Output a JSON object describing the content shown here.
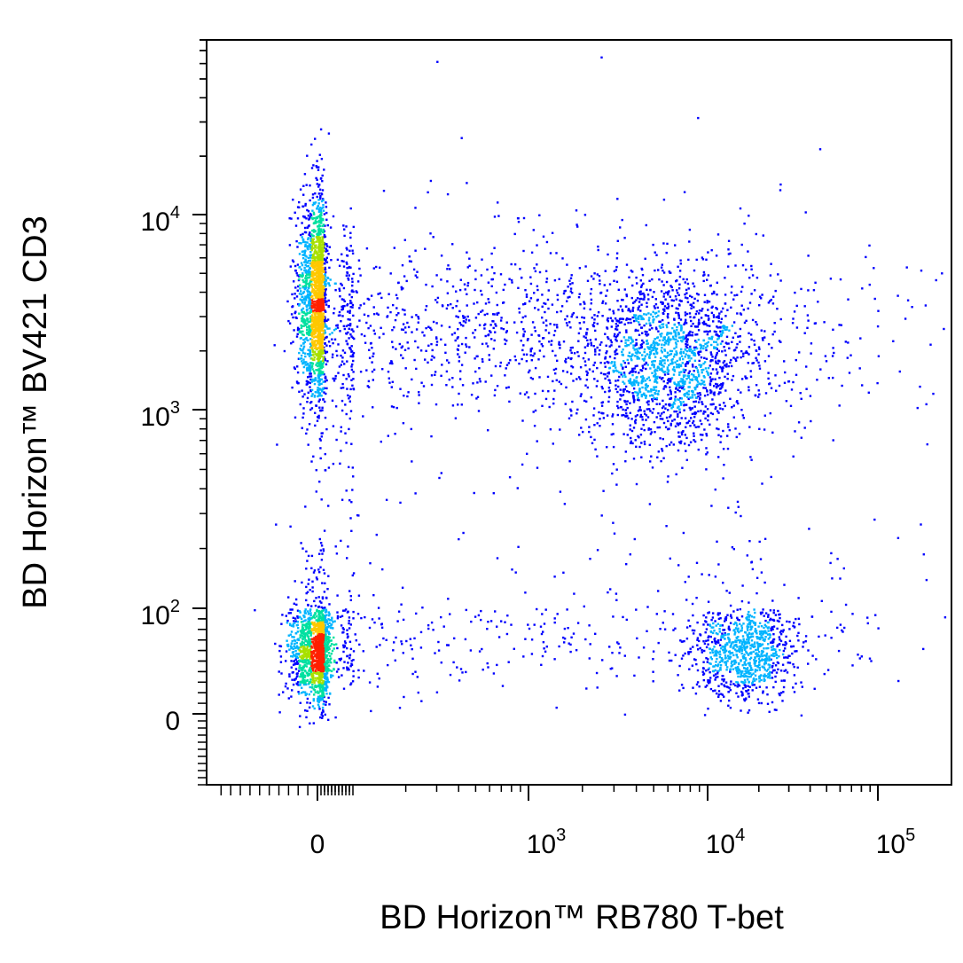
{
  "chart_data": {
    "type": "scatter",
    "style": "density-dot-plot",
    "xlabel": "BD Horizon™ RB780 T-bet",
    "ylabel": "BD Horizon™ BV421 CD3",
    "x_scale": "biexponential",
    "y_scale": "biexponential",
    "x_ticks": [
      {
        "value": 0,
        "base": "0",
        "exp": ""
      },
      {
        "value": 1000,
        "base": "10",
        "exp": "3"
      },
      {
        "value": 10000,
        "base": "10",
        "exp": "4"
      },
      {
        "value": 100000,
        "base": "10",
        "exp": "5"
      }
    ],
    "y_ticks": [
      {
        "value": 0,
        "base": "0",
        "exp": ""
      },
      {
        "value": 100,
        "base": "10",
        "exp": "2"
      },
      {
        "value": 1000,
        "base": "10",
        "exp": "3"
      },
      {
        "value": 10000,
        "base": "10",
        "exp": "4"
      }
    ],
    "grid": false,
    "legend": "none",
    "density_colors": [
      "#0000ff",
      "#00b4ff",
      "#00e0a0",
      "#a8e000",
      "#ffc800",
      "#ff2000"
    ],
    "populations": [
      {
        "x_center": 0,
        "y_center": 3700,
        "x_spread": 0.1,
        "y_spread": 0.12,
        "count": 1900
      },
      {
        "x_center": 6000,
        "y_center": 1750,
        "x_spread": 0.1,
        "y_spread": 0.1,
        "count": 1500
      },
      {
        "x_center": 1200,
        "y_center": 2700,
        "x_spread": 0.45,
        "y_spread": 0.1,
        "count": 1200
      },
      {
        "x_center": 0,
        "y_center": 60,
        "x_spread": 0.14,
        "y_spread": 0.22,
        "count": 1500
      },
      {
        "x_center": 16000,
        "y_center": 60,
        "x_spread": 0.07,
        "y_spread": 0.2,
        "count": 900
      },
      {
        "x_center": 700,
        "y_center": 70,
        "x_spread": 0.5,
        "y_spread": 0.2,
        "count": 300
      },
      {
        "x_center": 1000,
        "y_center": 400,
        "x_spread": 0.8,
        "y_spread": 0.4,
        "count": 350
      }
    ]
  }
}
